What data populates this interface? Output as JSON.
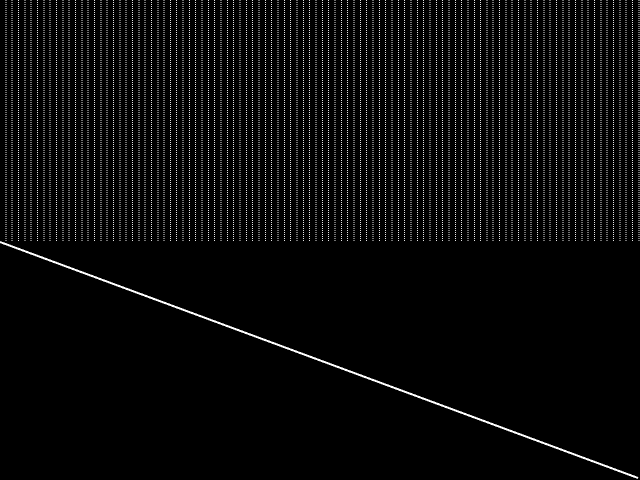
{
  "colors": {
    "background": "#000000",
    "foreground": "#ffffff"
  }
}
